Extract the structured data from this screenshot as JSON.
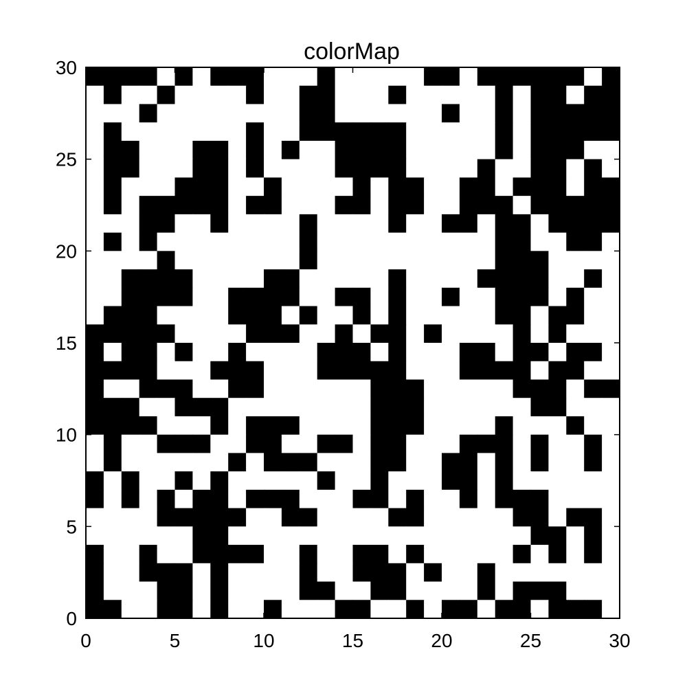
{
  "chart_data": {
    "type": "heatmap",
    "title": "colorMap",
    "xlabel": "",
    "ylabel": "",
    "xlim": [
      0,
      30
    ],
    "ylim": [
      0,
      30
    ],
    "x_ticks": [
      0,
      5,
      10,
      15,
      20,
      25,
      30
    ],
    "y_ticks": [
      0,
      5,
      10,
      15,
      20,
      25,
      30
    ],
    "x_tick_labels": [
      "0",
      "5",
      "10",
      "15",
      "20",
      "25",
      "30"
    ],
    "y_tick_labels": [
      "0",
      "5",
      "10",
      "15",
      "20",
      "25",
      "30"
    ],
    "grid": false,
    "colormap": {
      "0": "#ffffff",
      "1": "#000000"
    },
    "rows_top_to_bottom": [
      "111101011100010000011011111101",
      "010010000100110001000001011011",
      "000100000000110000001001011111",
      "010000000100111111000001011111",
      "011000110101001111000001011100",
      "011000110100001111000010011010",
      "010001110010000101100110111011",
      "010111110110001101100111011111",
      "000110010000100001001101101111",
      "010100000000100000000001100110",
      "000010000000100000000001110000",
      "001111000011000001000011110010",
      "001111001111001101001001110100",
      "011100001110100101000001101100",
      "111110000111001011010000101000",
      "101101001000011101000110110110",
      "111100011100011111000111101100",
      "100111001100000011100000111011",
      "111001110000000011100000011000",
      "111100010111000011100001000100",
      "010011100110011011000111010010",
      "010000001011100011001101010010",
      "101001010000010010001101000000",
      "101010110111000110100101110000",
      "000011111001100001100000110110",
      "000000110000000000000000011010",
      "100100111100100110100000101010",
      "100111010000100111010010000000",
      "100011010000110011000010111000",
      "110011010010001100101101101110"
    ]
  }
}
